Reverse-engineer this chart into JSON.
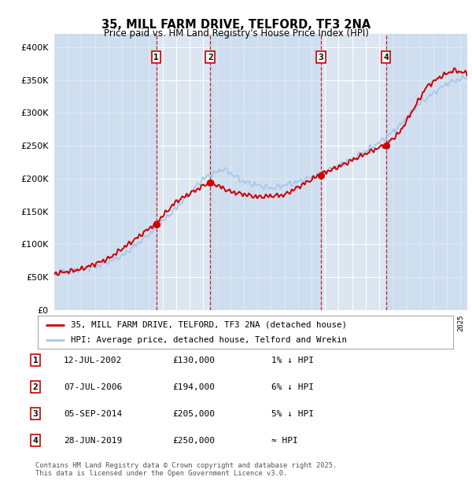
{
  "title": "35, MILL FARM DRIVE, TELFORD, TF3 2NA",
  "subtitle": "Price paid vs. HM Land Registry's House Price Index (HPI)",
  "background_color": "#ffffff",
  "plot_bg_color": "#dce6f1",
  "grid_color": "#ffffff",
  "hpi_line_color": "#a8c8e8",
  "price_line_color": "#cc0000",
  "vline_color": "#cc0000",
  "sale_marker_color": "#cc0000",
  "ylim": [
    0,
    420000
  ],
  "yticks": [
    0,
    50000,
    100000,
    150000,
    200000,
    250000,
    300000,
    350000,
    400000
  ],
  "ytick_labels": [
    "£0",
    "£50K",
    "£100K",
    "£150K",
    "£200K",
    "£250K",
    "£300K",
    "£350K",
    "£400K"
  ],
  "xmin": 1995,
  "xmax": 2025.5,
  "transactions": [
    {
      "date_x": 2002.53,
      "price": 130000,
      "label": "1"
    },
    {
      "date_x": 2006.52,
      "price": 194000,
      "label": "2"
    },
    {
      "date_x": 2014.68,
      "price": 205000,
      "label": "3"
    },
    {
      "date_x": 2019.49,
      "price": 250000,
      "label": "4"
    }
  ],
  "legend_entries": [
    {
      "label": "35, MILL FARM DRIVE, TELFORD, TF3 2NA (detached house)",
      "color": "#cc0000"
    },
    {
      "label": "HPI: Average price, detached house, Telford and Wrekin",
      "color": "#a8c8e8"
    }
  ],
  "table_rows": [
    {
      "num": "1",
      "date": "12-JUL-2002",
      "price": "£130,000",
      "hpi": "1% ↓ HPI"
    },
    {
      "num": "2",
      "date": "07-JUL-2006",
      "price": "£194,000",
      "hpi": "6% ↓ HPI"
    },
    {
      "num": "3",
      "date": "05-SEP-2014",
      "price": "£205,000",
      "hpi": "5% ↓ HPI"
    },
    {
      "num": "4",
      "date": "28-JUN-2019",
      "price": "£250,000",
      "hpi": "≈ HPI"
    }
  ],
  "footer": "Contains HM Land Registry data © Crown copyright and database right 2025.\nThis data is licensed under the Open Government Licence v3.0."
}
